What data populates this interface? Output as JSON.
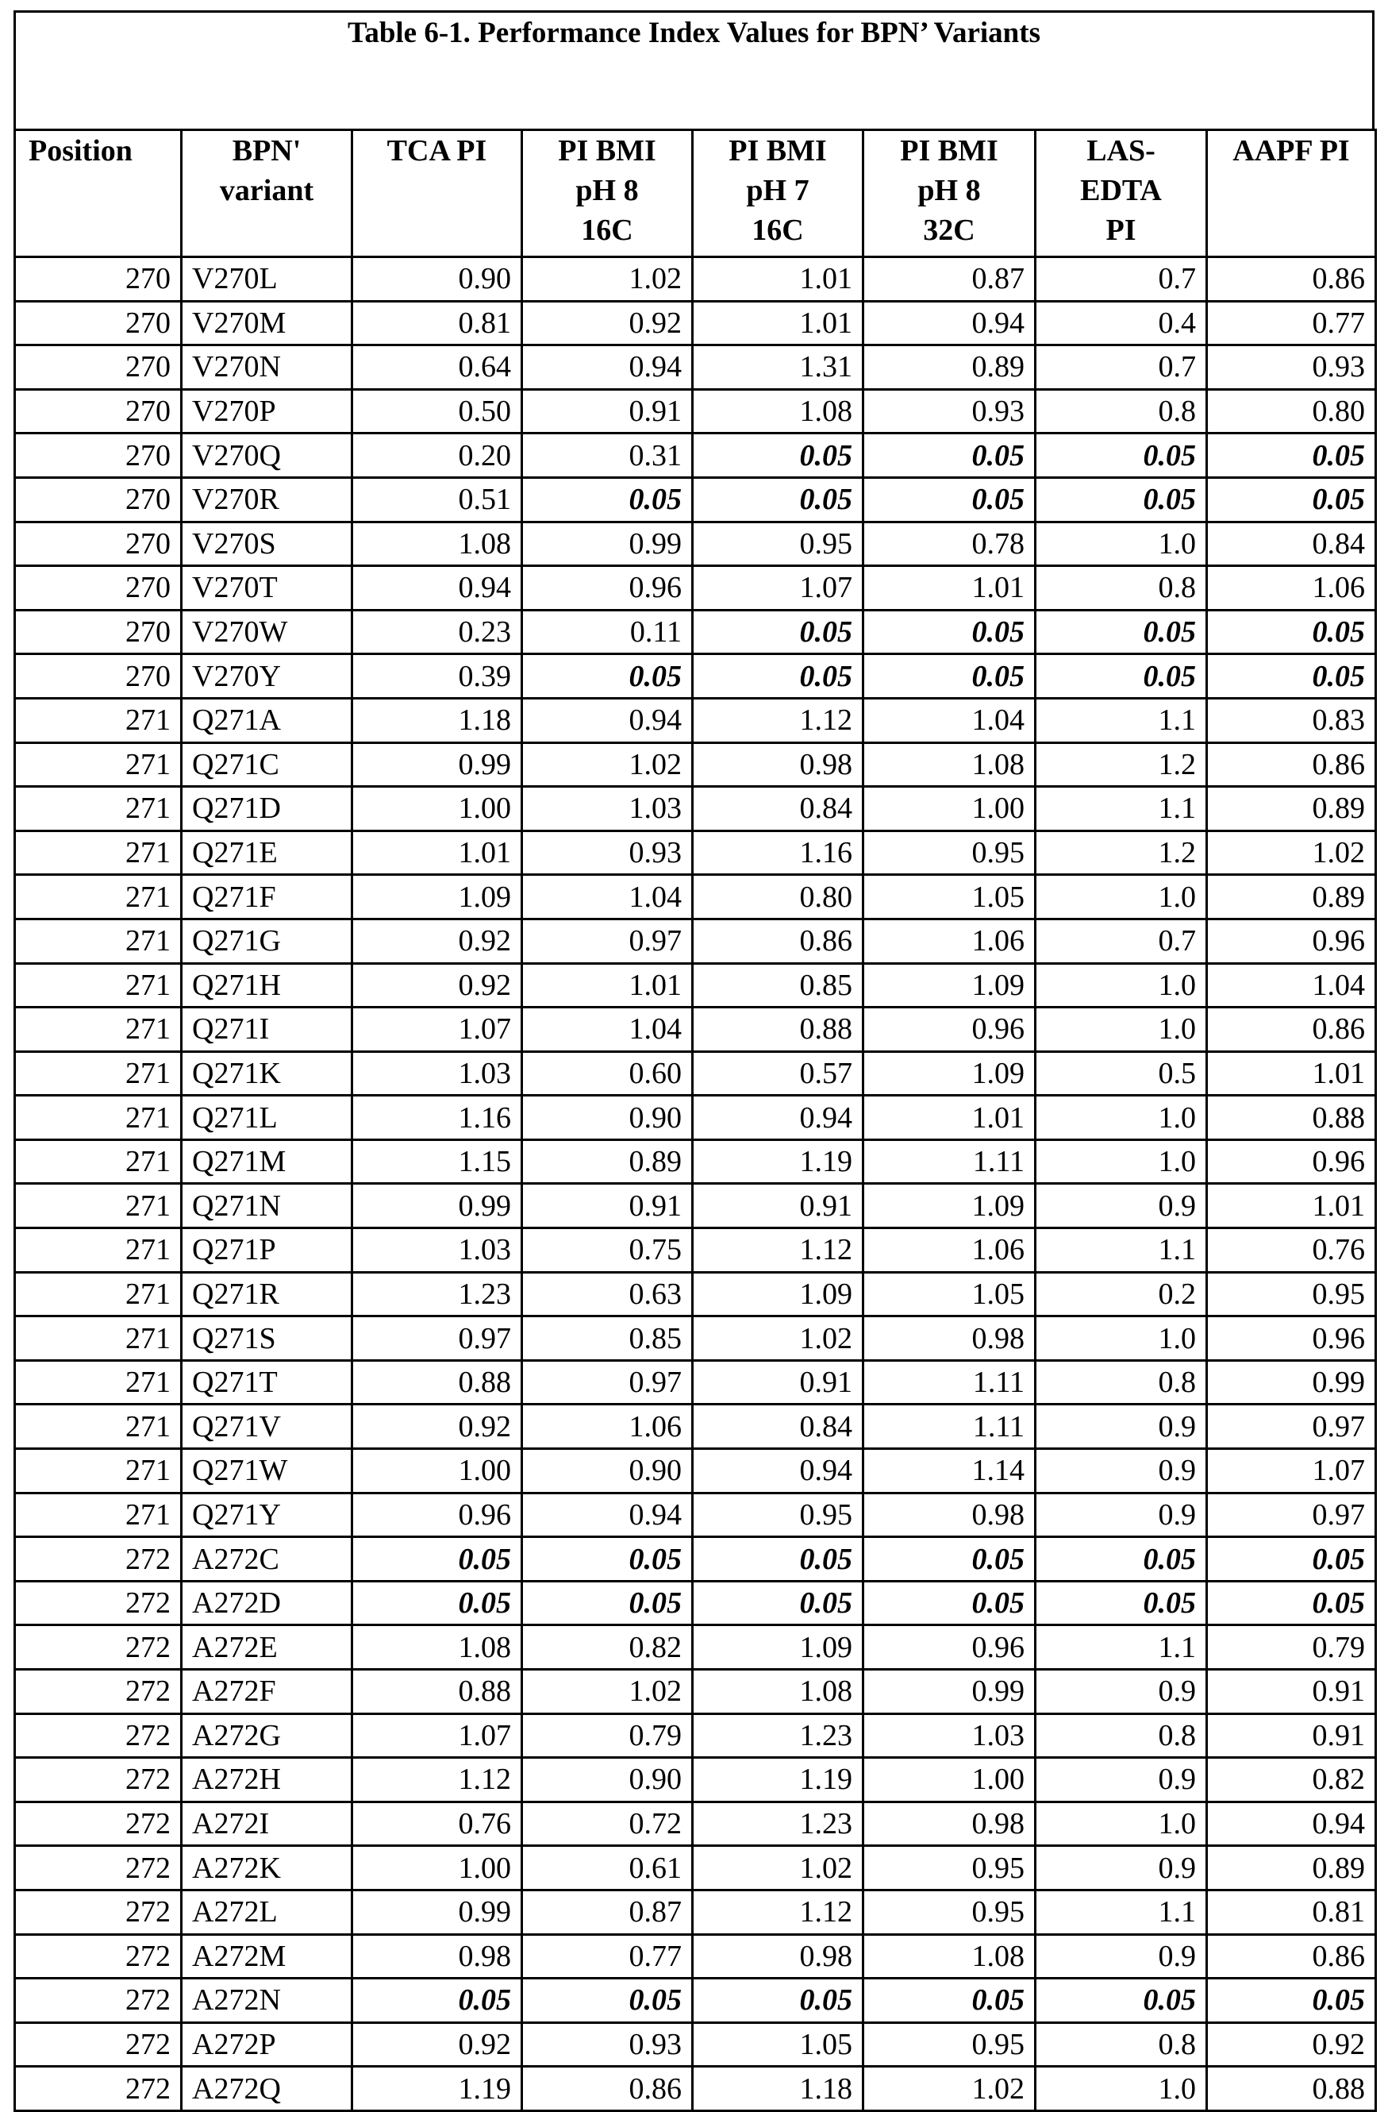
{
  "title": "Table 6-1. Performance Index Values for BPN’ Variants",
  "columns": [
    "Position",
    "BPN'\nvariant",
    "TCA PI",
    "PI BMI\npH 8\n16C",
    "PI BMI\npH 7\n16C",
    "PI BMI\npH 8\n32C",
    "LAS-\nEDTA\nPI",
    "AAPF PI"
  ],
  "rows": [
    [
      "270",
      "V270L",
      "0.90",
      "1.02",
      "1.01",
      "0.87",
      "0.7",
      "0.86"
    ],
    [
      "270",
      "V270M",
      "0.81",
      "0.92",
      "1.01",
      "0.94",
      "0.4",
      "0.77"
    ],
    [
      "270",
      "V270N",
      "0.64",
      "0.94",
      "1.31",
      "0.89",
      "0.7",
      "0.93"
    ],
    [
      "270",
      "V270P",
      "0.50",
      "0.91",
      "1.08",
      "0.93",
      "0.8",
      "0.80"
    ],
    [
      "270",
      "V270Q",
      "0.20",
      "0.31",
      "0.05",
      "0.05",
      "0.05",
      "0.05"
    ],
    [
      "270",
      "V270R",
      "0.51",
      "0.05",
      "0.05",
      "0.05",
      "0.05",
      "0.05"
    ],
    [
      "270",
      "V270S",
      "1.08",
      "0.99",
      "0.95",
      "0.78",
      "1.0",
      "0.84"
    ],
    [
      "270",
      "V270T",
      "0.94",
      "0.96",
      "1.07",
      "1.01",
      "0.8",
      "1.06"
    ],
    [
      "270",
      "V270W",
      "0.23",
      "0.11",
      "0.05",
      "0.05",
      "0.05",
      "0.05"
    ],
    [
      "270",
      "V270Y",
      "0.39",
      "0.05",
      "0.05",
      "0.05",
      "0.05",
      "0.05"
    ],
    [
      "271",
      "Q271A",
      "1.18",
      "0.94",
      "1.12",
      "1.04",
      "1.1",
      "0.83"
    ],
    [
      "271",
      "Q271C",
      "0.99",
      "1.02",
      "0.98",
      "1.08",
      "1.2",
      "0.86"
    ],
    [
      "271",
      "Q271D",
      "1.00",
      "1.03",
      "0.84",
      "1.00",
      "1.1",
      "0.89"
    ],
    [
      "271",
      "Q271E",
      "1.01",
      "0.93",
      "1.16",
      "0.95",
      "1.2",
      "1.02"
    ],
    [
      "271",
      "Q271F",
      "1.09",
      "1.04",
      "0.80",
      "1.05",
      "1.0",
      "0.89"
    ],
    [
      "271",
      "Q271G",
      "0.92",
      "0.97",
      "0.86",
      "1.06",
      "0.7",
      "0.96"
    ],
    [
      "271",
      "Q271H",
      "0.92",
      "1.01",
      "0.85",
      "1.09",
      "1.0",
      "1.04"
    ],
    [
      "271",
      "Q271I",
      "1.07",
      "1.04",
      "0.88",
      "0.96",
      "1.0",
      "0.86"
    ],
    [
      "271",
      "Q271K",
      "1.03",
      "0.60",
      "0.57",
      "1.09",
      "0.5",
      "1.01"
    ],
    [
      "271",
      "Q271L",
      "1.16",
      "0.90",
      "0.94",
      "1.01",
      "1.0",
      "0.88"
    ],
    [
      "271",
      "Q271M",
      "1.15",
      "0.89",
      "1.19",
      "1.11",
      "1.0",
      "0.96"
    ],
    [
      "271",
      "Q271N",
      "0.99",
      "0.91",
      "0.91",
      "1.09",
      "0.9",
      "1.01"
    ],
    [
      "271",
      "Q271P",
      "1.03",
      "0.75",
      "1.12",
      "1.06",
      "1.1",
      "0.76"
    ],
    [
      "271",
      "Q271R",
      "1.23",
      "0.63",
      "1.09",
      "1.05",
      "0.2",
      "0.95"
    ],
    [
      "271",
      "Q271S",
      "0.97",
      "0.85",
      "1.02",
      "0.98",
      "1.0",
      "0.96"
    ],
    [
      "271",
      "Q271T",
      "0.88",
      "0.97",
      "0.91",
      "1.11",
      "0.8",
      "0.99"
    ],
    [
      "271",
      "Q271V",
      "0.92",
      "1.06",
      "0.84",
      "1.11",
      "0.9",
      "0.97"
    ],
    [
      "271",
      "Q271W",
      "1.00",
      "0.90",
      "0.94",
      "1.14",
      "0.9",
      "1.07"
    ],
    [
      "271",
      "Q271Y",
      "0.96",
      "0.94",
      "0.95",
      "0.98",
      "0.9",
      "0.97"
    ],
    [
      "272",
      "A272C",
      "0.05",
      "0.05",
      "0.05",
      "0.05",
      "0.05",
      "0.05"
    ],
    [
      "272",
      "A272D",
      "0.05",
      "0.05",
      "0.05",
      "0.05",
      "0.05",
      "0.05"
    ],
    [
      "272",
      "A272E",
      "1.08",
      "0.82",
      "1.09",
      "0.96",
      "1.1",
      "0.79"
    ],
    [
      "272",
      "A272F",
      "0.88",
      "1.02",
      "1.08",
      "0.99",
      "0.9",
      "0.91"
    ],
    [
      "272",
      "A272G",
      "1.07",
      "0.79",
      "1.23",
      "1.03",
      "0.8",
      "0.91"
    ],
    [
      "272",
      "A272H",
      "1.12",
      "0.90",
      "1.19",
      "1.00",
      "0.9",
      "0.82"
    ],
    [
      "272",
      "A272I",
      "0.76",
      "0.72",
      "1.23",
      "0.98",
      "1.0",
      "0.94"
    ],
    [
      "272",
      "A272K",
      "1.00",
      "0.61",
      "1.02",
      "0.95",
      "0.9",
      "0.89"
    ],
    [
      "272",
      "A272L",
      "0.99",
      "0.87",
      "1.12",
      "0.95",
      "1.1",
      "0.81"
    ],
    [
      "272",
      "A272M",
      "0.98",
      "0.77",
      "0.98",
      "1.08",
      "0.9",
      "0.86"
    ],
    [
      "272",
      "A272N",
      "0.05",
      "0.05",
      "0.05",
      "0.05",
      "0.05",
      "0.05"
    ],
    [
      "272",
      "A272P",
      "0.92",
      "0.93",
      "1.05",
      "0.95",
      "0.8",
      "0.92"
    ],
    [
      "272",
      "A272Q",
      "1.19",
      "0.86",
      "1.18",
      "1.02",
      "1.0",
      "0.88"
    ]
  ]
}
